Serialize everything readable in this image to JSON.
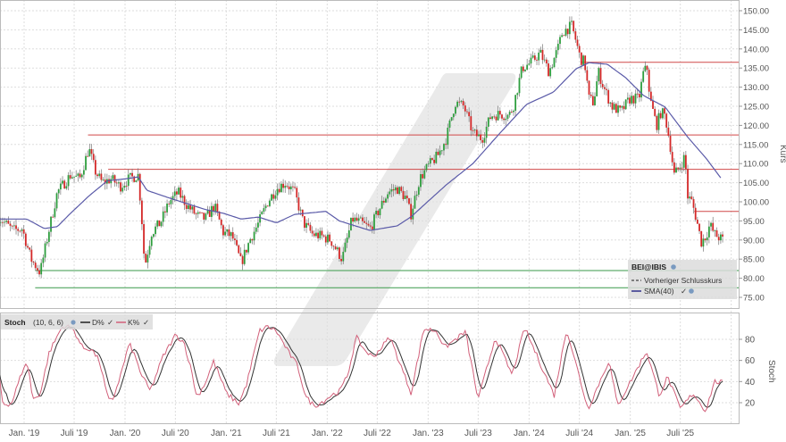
{
  "chart_data": [
    {
      "type": "candlestick",
      "panel": "price",
      "instrument": "BEI@IBIS",
      "ylabel": "Kurs",
      "ylim": [
        75,
        150
      ],
      "y_ticks": [
        "150.00",
        "145.00",
        "140.00",
        "135.00",
        "130.00",
        "125.00",
        "120.00",
        "115.00",
        "110.00",
        "105.00",
        "100.00",
        "95.00",
        "90.00",
        "85.00",
        "80.00",
        "75.00"
      ],
      "x_ticks": [
        {
          "label": "Jan. '19",
          "date": "2019-01-01"
        },
        {
          "label": "Juli '19",
          "date": "2019-07-01"
        },
        {
          "label": "Jan. '20",
          "date": "2020-01-01"
        },
        {
          "label": "Juli '20",
          "date": "2020-07-01"
        },
        {
          "label": "Jan. '21",
          "date": "2021-01-01"
        },
        {
          "label": "Juli '21",
          "date": "2021-07-01"
        },
        {
          "label": "Jan. '22",
          "date": "2022-01-01"
        },
        {
          "label": "Juli '22",
          "date": "2022-07-01"
        },
        {
          "label": "Jan. '23",
          "date": "2023-01-01"
        },
        {
          "label": "Juli '23",
          "date": "2023-07-01"
        },
        {
          "label": "Jan. '24",
          "date": "2024-01-01"
        },
        {
          "label": "Juli '24",
          "date": "2024-07-01"
        },
        {
          "label": "Jan. '25",
          "date": "2025-01-01"
        },
        {
          "label": "Juli '25",
          "date": "2025-07-01"
        },
        {
          "label": "",
          "date": "2026-01-01"
        }
      ],
      "grid": true,
      "close_series": [
        [
          "2018-10-01",
          96
        ],
        [
          "2018-11-22",
          92.5
        ],
        [
          "2018-12-25",
          93
        ],
        [
          "2019-01-26",
          85
        ],
        [
          "2019-02-28",
          81.5
        ],
        [
          "2019-03-30",
          92
        ],
        [
          "2019-05-01",
          102.5
        ],
        [
          "2019-06-18",
          107
        ],
        [
          "2019-07-21",
          106
        ],
        [
          "2019-08-23",
          114
        ],
        [
          "2019-09-15",
          108
        ],
        [
          "2019-10-10",
          105
        ],
        [
          "2019-11-12",
          106
        ],
        [
          "2019-12-14",
          104
        ],
        [
          "2020-01-15",
          106
        ],
        [
          "2020-02-18",
          107
        ],
        [
          "2020-03-03",
          94
        ],
        [
          "2020-03-12",
          83
        ],
        [
          "2020-04-06",
          92
        ],
        [
          "2020-05-08",
          94.5
        ],
        [
          "2020-06-09",
          100
        ],
        [
          "2020-07-11",
          102.5
        ],
        [
          "2020-08-13",
          99
        ],
        [
          "2020-09-15",
          96.5
        ],
        [
          "2020-10-17",
          95.5
        ],
        [
          "2020-11-19",
          99
        ],
        [
          "2020-12-21",
          92
        ],
        [
          "2021-01-22",
          91
        ],
        [
          "2021-02-24",
          84
        ],
        [
          "2021-03-27",
          90
        ],
        [
          "2021-04-28",
          94.5
        ],
        [
          "2021-05-31",
          100
        ],
        [
          "2021-07-02",
          103.5
        ],
        [
          "2021-08-03",
          105
        ],
        [
          "2021-09-05",
          102.5
        ],
        [
          "2021-10-07",
          94.5
        ],
        [
          "2021-11-09",
          91.5
        ],
        [
          "2021-12-11",
          91
        ],
        [
          "2022-01-13",
          90
        ],
        [
          "2022-02-24",
          85
        ],
        [
          "2022-04-01",
          95.5
        ],
        [
          "2022-05-03",
          94.5
        ],
        [
          "2022-06-05",
          93
        ],
        [
          "2022-07-08",
          98
        ],
        [
          "2022-08-09",
          102.5
        ],
        [
          "2022-09-11",
          103.5
        ],
        [
          "2022-10-13",
          101
        ],
        [
          "2022-10-30",
          96.5
        ],
        [
          "2022-12-01",
          106
        ],
        [
          "2023-01-03",
          109.5
        ],
        [
          "2023-02-04",
          112
        ],
        [
          "2023-03-07",
          116.5
        ],
        [
          "2023-04-09",
          126
        ],
        [
          "2023-05-10",
          125
        ],
        [
          "2023-06-12",
          118
        ],
        [
          "2023-07-15",
          116.5
        ],
        [
          "2023-08-16",
          122.5
        ],
        [
          "2023-09-18",
          123
        ],
        [
          "2023-10-20",
          122.5
        ],
        [
          "2023-11-05",
          125
        ],
        [
          "2023-12-07",
          135
        ],
        [
          "2024-01-09",
          136.5
        ],
        [
          "2024-02-10",
          139
        ],
        [
          "2024-03-13",
          134
        ],
        [
          "2024-04-14",
          140
        ],
        [
          "2024-05-01",
          144.5
        ],
        [
          "2024-06-03",
          146
        ],
        [
          "2024-06-19",
          142
        ],
        [
          "2024-07-04",
          137.5
        ],
        [
          "2024-07-20",
          136.5
        ],
        [
          "2024-08-05",
          127
        ],
        [
          "2024-08-21",
          126
        ],
        [
          "2024-09-08",
          134
        ],
        [
          "2024-09-24",
          130.5
        ],
        [
          "2024-10-26",
          125
        ],
        [
          "2024-11-28",
          123.5
        ],
        [
          "2024-12-31",
          127
        ],
        [
          "2025-02-01",
          127
        ],
        [
          "2025-02-18",
          134
        ],
        [
          "2025-03-04",
          135
        ],
        [
          "2025-03-13",
          127
        ],
        [
          "2025-04-06",
          120
        ],
        [
          "2025-04-22",
          123.5
        ],
        [
          "2025-05-07",
          122.5
        ],
        [
          "2025-05-24",
          115.5
        ],
        [
          "2025-06-09",
          107
        ],
        [
          "2025-07-01",
          109.5
        ],
        [
          "2025-07-18",
          112
        ],
        [
          "2025-07-27",
          101.5
        ],
        [
          "2025-08-12",
          100
        ],
        [
          "2025-08-28",
          95.5
        ],
        [
          "2025-09-15",
          89.5
        ],
        [
          "2025-10-01",
          91
        ],
        [
          "2025-10-16",
          94
        ],
        [
          "2025-11-02",
          91.5
        ],
        [
          "2025-12-01",
          90
        ]
      ],
      "sma": {
        "name": "SMA(40)",
        "color": "#5a5aa8",
        "values": [
          [
            "2018-10-01",
            95.5
          ],
          [
            "2019-01-10",
            95.5
          ],
          [
            "2019-03-15",
            93
          ],
          [
            "2019-05-01",
            93.5
          ],
          [
            "2019-06-18",
            97
          ],
          [
            "2019-08-23",
            101.5
          ],
          [
            "2019-10-29",
            105.5
          ],
          [
            "2020-01-01",
            106
          ],
          [
            "2020-02-18",
            106.5
          ],
          [
            "2020-03-20",
            103
          ],
          [
            "2020-06-09",
            101
          ],
          [
            "2020-08-13",
            99.5
          ],
          [
            "2020-10-17",
            98
          ],
          [
            "2020-12-21",
            97
          ],
          [
            "2021-02-24",
            95.5
          ],
          [
            "2021-04-28",
            96
          ],
          [
            "2021-07-02",
            94.5
          ],
          [
            "2021-09-05",
            96.7
          ],
          [
            "2021-12-27",
            97.5
          ],
          [
            "2022-02-14",
            95
          ],
          [
            "2022-06-05",
            92.5
          ],
          [
            "2022-09-11",
            93.7
          ],
          [
            "2022-10-30",
            96
          ],
          [
            "2023-03-07",
            104.4
          ],
          [
            "2023-06-12",
            110
          ],
          [
            "2023-09-18",
            118
          ],
          [
            "2023-12-23",
            125.5
          ],
          [
            "2024-03-29",
            128.7
          ],
          [
            "2024-06-19",
            134.8
          ],
          [
            "2024-08-05",
            136.4
          ],
          [
            "2024-10-10",
            136
          ],
          [
            "2024-12-15",
            132.5
          ],
          [
            "2025-02-18",
            127.8
          ],
          [
            "2025-05-07",
            124.8
          ],
          [
            "2025-07-27",
            117
          ],
          [
            "2025-10-01",
            111.5
          ],
          [
            "2025-11-27",
            106
          ]
        ]
      },
      "horizontal_lines": [
        {
          "value": 136.5,
          "from": "2024-07-10",
          "color": "#d04848"
        },
        {
          "value": 117.5,
          "from": "2019-08-20",
          "color": "#d04848"
        },
        {
          "value": 108.5,
          "from": "2019-11-01",
          "color": "#d04848"
        },
        {
          "value": 97.5,
          "from": "2025-08-20",
          "color": "#d04848"
        },
        {
          "value": 82,
          "from": "2019-02-10",
          "color": "#3a9a4a"
        },
        {
          "value": 77.5,
          "from": "2019-02-10",
          "color": "#3a9a4a"
        }
      ],
      "colors": {
        "up": "#2e9e3e",
        "down": "#d42828",
        "wick": "#777777"
      },
      "legend": {
        "title": "BEI@IBIS",
        "items": [
          {
            "label": "Vorheriger Schlusskurs",
            "style": "dashed",
            "color": "#444444"
          },
          {
            "label": "SMA(40)",
            "style": "solid",
            "color": "#3a3a90"
          }
        ],
        "placement": "bottom-right"
      }
    },
    {
      "type": "line",
      "panel": "stochastic",
      "title": "Stoch",
      "params": "(10, 6, 6)",
      "ylabel": "Stoch",
      "ylim": [
        0,
        100
      ],
      "y_ticks": [
        "80",
        "60",
        "40",
        "20"
      ],
      "legend": {
        "d_label": "D%",
        "k_label": "K%",
        "placement": "top-left"
      },
      "series": [
        {
          "name": "K%",
          "color": "#d2607a",
          "values": [
            [
              "2018-10-01",
              49
            ],
            [
              "2018-10-16",
              19
            ],
            [
              "2018-11-16",
              19
            ],
            [
              "2019-01-01",
              55
            ],
            [
              "2019-01-16",
              55
            ],
            [
              "2019-02-01",
              22.5
            ],
            [
              "2019-03-01",
              29
            ],
            [
              "2019-04-01",
              67
            ],
            [
              "2019-05-16",
              91
            ],
            [
              "2019-06-01",
              93
            ],
            [
              "2019-07-01",
              88
            ],
            [
              "2019-08-01",
              71.5
            ],
            [
              "2019-09-01",
              71
            ],
            [
              "2019-10-01",
              59
            ],
            [
              "2019-11-01",
              22.5
            ],
            [
              "2019-11-16",
              22
            ],
            [
              "2019-12-16",
              46
            ],
            [
              "2020-01-16",
              76
            ],
            [
              "2020-02-01",
              67
            ],
            [
              "2020-03-01",
              46
            ],
            [
              "2020-04-01",
              31
            ],
            [
              "2020-05-16",
              63
            ],
            [
              "2020-07-01",
              84
            ],
            [
              "2020-08-01",
              77.5
            ],
            [
              "2020-09-01",
              46
            ],
            [
              "2020-09-16",
              25
            ],
            [
              "2020-10-16",
              38
            ],
            [
              "2020-11-16",
              59
            ],
            [
              "2020-12-01",
              50
            ],
            [
              "2021-01-01",
              29
            ],
            [
              "2021-02-16",
              19
            ],
            [
              "2021-03-16",
              38
            ],
            [
              "2021-05-01",
              88
            ],
            [
              "2021-06-01",
              92
            ],
            [
              "2021-07-01",
              88
            ],
            [
              "2021-08-16",
              67
            ],
            [
              "2021-09-16",
              55
            ],
            [
              "2021-10-16",
              25
            ],
            [
              "2021-11-16",
              17
            ],
            [
              "2021-12-16",
              21
            ],
            [
              "2022-01-16",
              27
            ],
            [
              "2022-02-16",
              31
            ],
            [
              "2022-03-16",
              46
            ],
            [
              "2022-04-16",
              82
            ],
            [
              "2022-05-16",
              70
            ],
            [
              "2022-06-16",
              63
            ],
            [
              "2022-08-16",
              82
            ],
            [
              "2022-11-01",
              29
            ],
            [
              "2022-12-16",
              90
            ],
            [
              "2023-02-01",
              88
            ],
            [
              "2023-03-01",
              72
            ],
            [
              "2023-05-16",
              87
            ],
            [
              "2023-07-01",
              22.5
            ],
            [
              "2023-09-01",
              82
            ],
            [
              "2023-11-01",
              46
            ],
            [
              "2023-12-16",
              91
            ],
            [
              "2024-04-01",
              27
            ],
            [
              "2024-05-16",
              90
            ],
            [
              "2024-08-01",
              14
            ],
            [
              "2024-10-16",
              60
            ],
            [
              "2024-11-16",
              17
            ],
            [
              "2025-03-01",
              69
            ],
            [
              "2025-04-16",
              27
            ],
            [
              "2025-05-16",
              44.5
            ],
            [
              "2025-07-01",
              14
            ],
            [
              "2025-08-16",
              29
            ],
            [
              "2025-10-01",
              12
            ],
            [
              "2025-11-01",
              40
            ],
            [
              "2025-12-01",
              39
            ]
          ]
        },
        {
          "name": "D%",
          "color": "#333333",
          "smoothing_of": "K%"
        }
      ]
    }
  ]
}
